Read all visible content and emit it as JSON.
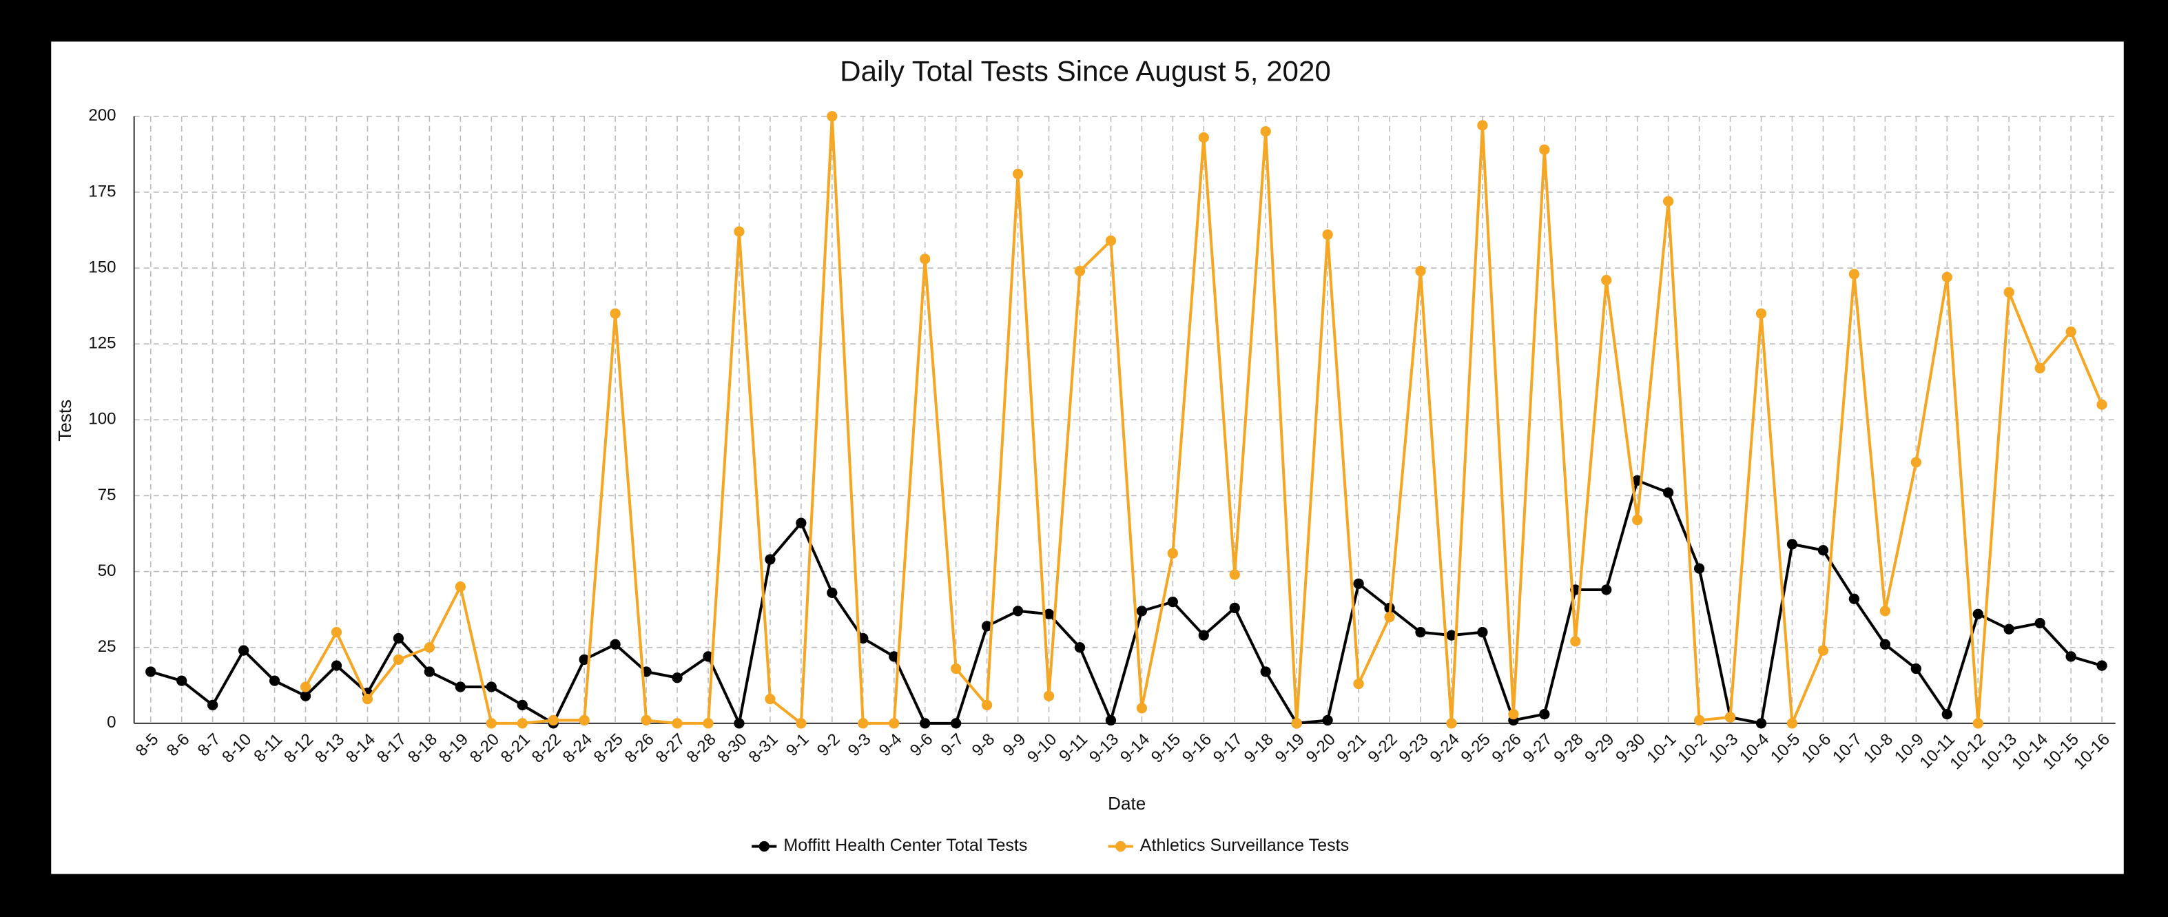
{
  "chart_data": {
    "type": "line",
    "title": "Daily Total Tests Since August 5, 2020",
    "x_label": "Date",
    "y_label": "Tests",
    "categories": [
      "8-5",
      "8-6",
      "8-7",
      "8-10",
      "8-11",
      "8-12",
      "8-13",
      "8-14",
      "8-17",
      "8-18",
      "8-19",
      "8-20",
      "8-21",
      "8-22",
      "8-24",
      "8-25",
      "8-26",
      "8-27",
      "8-28",
      "8-30",
      "8-31",
      "9-1",
      "9-2",
      "9-3",
      "9-4",
      "9-6",
      "9-7",
      "9-8",
      "9-9",
      "9-10",
      "9-11",
      "9-13",
      "9-14",
      "9-15",
      "9-16",
      "9-17",
      "9-18",
      "9-19",
      "9-20",
      "9-21",
      "9-22",
      "9-23",
      "9-24",
      "9-25",
      "9-26",
      "9-27",
      "9-28",
      "9-29",
      "9-30",
      "10-1",
      "10-2",
      "10-3",
      "10-4",
      "10-5",
      "10-6",
      "10-7",
      "10-8",
      "10-9",
      "10-11",
      "10-12",
      "10-13",
      "10-14",
      "10-15",
      "10-16"
    ],
    "series": [
      {
        "name": "Moffitt Health Center Total Tests",
        "color": "#000000",
        "values": [
          17,
          14,
          6,
          24,
          14,
          9,
          19,
          10,
          28,
          17,
          12,
          12,
          6,
          0,
          21,
          26,
          17,
          15,
          22,
          0,
          54,
          66,
          43,
          28,
          22,
          0,
          0,
          32,
          37,
          36,
          25,
          1,
          37,
          40,
          29,
          38,
          17,
          0,
          1,
          46,
          38,
          30,
          29,
          30,
          1,
          3,
          44,
          44,
          80,
          76,
          51,
          2,
          0,
          59,
          57,
          41,
          26,
          18,
          3,
          36,
          31,
          33,
          22,
          19
        ]
      },
      {
        "name": "Athletics Surveillance Tests",
        "color": "#f5a623",
        "values": [
          null,
          null,
          null,
          null,
          null,
          12,
          30,
          8,
          21,
          25,
          45,
          0,
          0,
          1,
          1,
          135,
          1,
          0,
          0,
          162,
          8,
          0,
          200,
          0,
          0,
          153,
          18,
          6,
          181,
          9,
          149,
          159,
          5,
          56,
          193,
          49,
          195,
          0,
          161,
          13,
          35,
          149,
          0,
          197,
          3,
          189,
          27,
          146,
          67,
          172,
          1,
          2,
          135,
          0,
          24,
          148,
          37,
          86,
          147,
          0,
          142,
          117,
          129,
          105
        ]
      }
    ],
    "ylim": [
      0,
      200
    ],
    "yticks": [
      0,
      25,
      50,
      75,
      100,
      125,
      150,
      175,
      200
    ],
    "grid": true,
    "legend": "bottom"
  }
}
